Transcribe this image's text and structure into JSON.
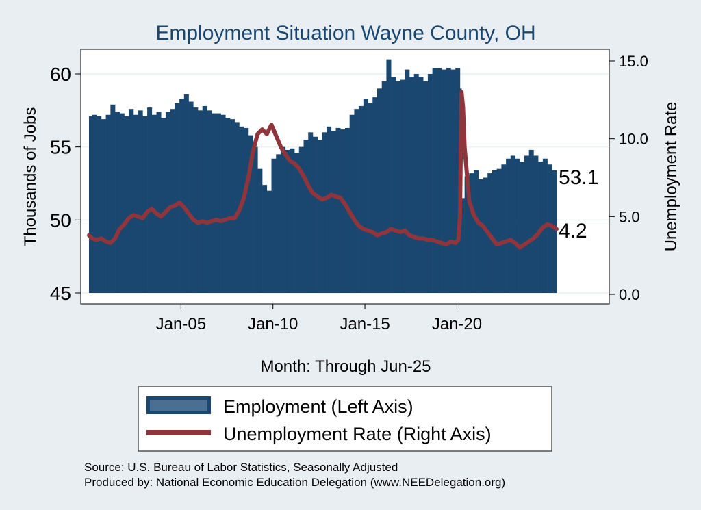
{
  "colors": {
    "background": "#e9eef3",
    "plot_background": "#ffffff",
    "employment_fill": "#1a476f",
    "unemployment_line": "#90353b",
    "title": "#1a476f"
  },
  "chart_data": {
    "type": "bar",
    "title": "Employment Situation Wayne  County, OH",
    "xlabel": "Month: Through Jun-25",
    "ylabel_left": "Thousands of Jobs",
    "ylabel_right": "Unemployment Rate",
    "x_range": [
      "2000-01",
      "2025-06"
    ],
    "x_tick_labels": [
      "Jan-05",
      "Jan-10",
      "Jan-15",
      "Jan-20"
    ],
    "ylim_left": [
      45,
      62
    ],
    "yticks_left": [
      "45",
      "50",
      "55",
      "60"
    ],
    "ylim_right": [
      0,
      16
    ],
    "yticks_right": [
      "0.0",
      "5.0",
      "10.0",
      "15.0"
    ],
    "grid": true,
    "legend_position": "bottom",
    "end_labels": {
      "employment": "53.1",
      "unemployment": "4.2"
    },
    "series": [
      {
        "name": "Employment (Left Axis)",
        "axis": "left",
        "type": "bar",
        "points": [
          [
            "2000-01",
            57.1
          ],
          [
            "2000-03",
            57.2
          ],
          [
            "2000-06",
            57.1
          ],
          [
            "2000-09",
            56.9
          ],
          [
            "2000-12",
            57.2
          ],
          [
            "2001-03",
            57.9
          ],
          [
            "2001-06",
            57.4
          ],
          [
            "2001-09",
            57.3
          ],
          [
            "2001-12",
            57.1
          ],
          [
            "2002-03",
            57.6
          ],
          [
            "2002-06",
            57.2
          ],
          [
            "2002-09",
            57.5
          ],
          [
            "2002-12",
            57.1
          ],
          [
            "2003-03",
            57.7
          ],
          [
            "2003-06",
            57.2
          ],
          [
            "2003-09",
            57.4
          ],
          [
            "2003-12",
            57.0
          ],
          [
            "2004-03",
            57.4
          ],
          [
            "2004-06",
            57.6
          ],
          [
            "2004-09",
            58.0
          ],
          [
            "2004-12",
            58.3
          ],
          [
            "2005-03",
            58.6
          ],
          [
            "2005-06",
            58.1
          ],
          [
            "2005-09",
            57.7
          ],
          [
            "2005-12",
            57.5
          ],
          [
            "2006-03",
            57.8
          ],
          [
            "2006-06",
            57.5
          ],
          [
            "2006-09",
            57.3
          ],
          [
            "2006-12",
            57.3
          ],
          [
            "2007-03",
            57.2
          ],
          [
            "2007-06",
            57.0
          ],
          [
            "2007-09",
            56.9
          ],
          [
            "2007-12",
            56.7
          ],
          [
            "2008-03",
            56.4
          ],
          [
            "2008-06",
            56.3
          ],
          [
            "2008-09",
            55.8
          ],
          [
            "2008-12",
            55.0
          ],
          [
            "2009-03",
            53.5
          ],
          [
            "2009-06",
            52.4
          ],
          [
            "2009-09",
            52.0
          ],
          [
            "2009-12",
            54.2
          ],
          [
            "2010-03",
            54.5
          ],
          [
            "2010-06",
            55.0
          ],
          [
            "2010-09",
            54.8
          ],
          [
            "2010-12",
            54.9
          ],
          [
            "2011-03",
            54.6
          ],
          [
            "2011-06",
            55.0
          ],
          [
            "2011-09",
            55.5
          ],
          [
            "2011-12",
            56.0
          ],
          [
            "2012-03",
            55.7
          ],
          [
            "2012-06",
            55.5
          ],
          [
            "2012-09",
            56.0
          ],
          [
            "2012-12",
            56.4
          ],
          [
            "2013-03",
            56.1
          ],
          [
            "2013-06",
            56.3
          ],
          [
            "2013-09",
            56.2
          ],
          [
            "2013-12",
            56.3
          ],
          [
            "2014-03",
            57.2
          ],
          [
            "2014-06",
            57.6
          ],
          [
            "2014-09",
            57.8
          ],
          [
            "2014-12",
            58.3
          ],
          [
            "2015-03",
            58.0
          ],
          [
            "2015-06",
            58.4
          ],
          [
            "2015-09",
            59.0
          ],
          [
            "2015-12",
            59.5
          ],
          [
            "2016-03",
            61.0
          ],
          [
            "2016-06",
            59.8
          ],
          [
            "2016-09",
            59.5
          ],
          [
            "2016-12",
            59.6
          ],
          [
            "2017-03",
            60.3
          ],
          [
            "2017-06",
            59.8
          ],
          [
            "2017-09",
            60.0
          ],
          [
            "2017-12",
            59.8
          ],
          [
            "2018-03",
            59.5
          ],
          [
            "2018-06",
            60.0
          ],
          [
            "2018-09",
            60.4
          ],
          [
            "2018-12",
            60.4
          ],
          [
            "2019-03",
            60.3
          ],
          [
            "2019-06",
            60.4
          ],
          [
            "2019-09",
            60.3
          ],
          [
            "2019-12",
            60.4
          ],
          [
            "2020-03",
            59.0
          ],
          [
            "2020-04",
            51.5
          ],
          [
            "2020-06",
            53.0
          ],
          [
            "2020-09",
            53.2
          ],
          [
            "2020-12",
            53.4
          ],
          [
            "2021-03",
            52.8
          ],
          [
            "2021-06",
            52.9
          ],
          [
            "2021-09",
            53.2
          ],
          [
            "2021-12",
            53.4
          ],
          [
            "2022-03",
            53.5
          ],
          [
            "2022-06",
            53.8
          ],
          [
            "2022-09",
            54.2
          ],
          [
            "2022-12",
            54.4
          ],
          [
            "2023-03",
            54.2
          ],
          [
            "2023-06",
            54.0
          ],
          [
            "2023-09",
            54.4
          ],
          [
            "2023-12",
            54.8
          ],
          [
            "2024-03",
            54.4
          ],
          [
            "2024-06",
            54.0
          ],
          [
            "2024-09",
            54.2
          ],
          [
            "2024-12",
            53.8
          ],
          [
            "2025-03",
            53.4
          ],
          [
            "2025-06",
            53.1
          ]
        ]
      },
      {
        "name": "Unemployment Rate (Right Axis)",
        "axis": "right",
        "type": "line",
        "points": [
          [
            "2000-01",
            3.8
          ],
          [
            "2000-03",
            3.6
          ],
          [
            "2000-06",
            3.5
          ],
          [
            "2000-09",
            3.6
          ],
          [
            "2000-12",
            3.4
          ],
          [
            "2001-03",
            3.3
          ],
          [
            "2001-06",
            3.6
          ],
          [
            "2001-09",
            4.2
          ],
          [
            "2001-12",
            4.5
          ],
          [
            "2002-03",
            4.9
          ],
          [
            "2002-06",
            5.1
          ],
          [
            "2002-09",
            5.0
          ],
          [
            "2002-12",
            4.9
          ],
          [
            "2003-03",
            5.3
          ],
          [
            "2003-06",
            5.5
          ],
          [
            "2003-09",
            5.2
          ],
          [
            "2003-12",
            5.0
          ],
          [
            "2004-03",
            5.3
          ],
          [
            "2004-06",
            5.6
          ],
          [
            "2004-09",
            5.7
          ],
          [
            "2004-12",
            5.9
          ],
          [
            "2005-03",
            5.6
          ],
          [
            "2005-06",
            5.2
          ],
          [
            "2005-09",
            4.8
          ],
          [
            "2005-12",
            4.6
          ],
          [
            "2006-03",
            4.7
          ],
          [
            "2006-06",
            4.6
          ],
          [
            "2006-09",
            4.7
          ],
          [
            "2006-12",
            4.8
          ],
          [
            "2007-03",
            4.7
          ],
          [
            "2007-06",
            4.8
          ],
          [
            "2007-09",
            4.9
          ],
          [
            "2007-12",
            4.9
          ],
          [
            "2008-03",
            5.4
          ],
          [
            "2008-06",
            6.2
          ],
          [
            "2008-09",
            7.5
          ],
          [
            "2008-12",
            9.2
          ],
          [
            "2009-03",
            10.3
          ],
          [
            "2009-06",
            10.6
          ],
          [
            "2009-09",
            10.3
          ],
          [
            "2009-12",
            10.9
          ],
          [
            "2010-03",
            10.2
          ],
          [
            "2010-06",
            9.5
          ],
          [
            "2010-09",
            9.0
          ],
          [
            "2010-12",
            8.6
          ],
          [
            "2011-03",
            8.4
          ],
          [
            "2011-06",
            8.1
          ],
          [
            "2011-09",
            7.6
          ],
          [
            "2011-12",
            7.0
          ],
          [
            "2012-03",
            6.5
          ],
          [
            "2012-06",
            6.3
          ],
          [
            "2012-09",
            6.1
          ],
          [
            "2012-12",
            6.2
          ],
          [
            "2013-03",
            6.4
          ],
          [
            "2013-06",
            6.3
          ],
          [
            "2013-09",
            6.2
          ],
          [
            "2013-12",
            5.8
          ],
          [
            "2014-03",
            5.3
          ],
          [
            "2014-06",
            4.8
          ],
          [
            "2014-09",
            4.4
          ],
          [
            "2014-12",
            4.2
          ],
          [
            "2015-03",
            4.1
          ],
          [
            "2015-06",
            4.0
          ],
          [
            "2015-09",
            3.8
          ],
          [
            "2015-12",
            3.9
          ],
          [
            "2016-03",
            4.0
          ],
          [
            "2016-06",
            4.2
          ],
          [
            "2016-09",
            4.1
          ],
          [
            "2016-12",
            4.0
          ],
          [
            "2017-03",
            4.1
          ],
          [
            "2017-06",
            3.8
          ],
          [
            "2017-09",
            3.7
          ],
          [
            "2017-12",
            3.6
          ],
          [
            "2018-03",
            3.6
          ],
          [
            "2018-06",
            3.5
          ],
          [
            "2018-09",
            3.5
          ],
          [
            "2018-12",
            3.4
          ],
          [
            "2019-03",
            3.3
          ],
          [
            "2019-06",
            3.2
          ],
          [
            "2019-09",
            3.4
          ],
          [
            "2019-12",
            3.3
          ],
          [
            "2020-02",
            3.5
          ],
          [
            "2020-03",
            5.0
          ],
          [
            "2020-04",
            13.0
          ],
          [
            "2020-05",
            12.0
          ],
          [
            "2020-06",
            9.5
          ],
          [
            "2020-09",
            6.0
          ],
          [
            "2020-12",
            5.1
          ],
          [
            "2021-03",
            4.6
          ],
          [
            "2021-06",
            4.4
          ],
          [
            "2021-09",
            4.0
          ],
          [
            "2021-12",
            3.6
          ],
          [
            "2022-03",
            3.2
          ],
          [
            "2022-06",
            3.3
          ],
          [
            "2022-09",
            3.4
          ],
          [
            "2022-12",
            3.5
          ],
          [
            "2023-03",
            3.3
          ],
          [
            "2023-06",
            3.0
          ],
          [
            "2023-09",
            3.2
          ],
          [
            "2023-12",
            3.4
          ],
          [
            "2024-03",
            3.6
          ],
          [
            "2024-06",
            3.9
          ],
          [
            "2024-09",
            4.3
          ],
          [
            "2024-12",
            4.5
          ],
          [
            "2025-03",
            4.4
          ],
          [
            "2025-06",
            4.2
          ]
        ]
      }
    ]
  },
  "footer": {
    "source": "Source: U.S. Bureau of Labor Statistics, Seasonally Adjusted",
    "produced_by": "Produced by: National Economic Education Delegation (www.NEEDelegation.org)"
  }
}
